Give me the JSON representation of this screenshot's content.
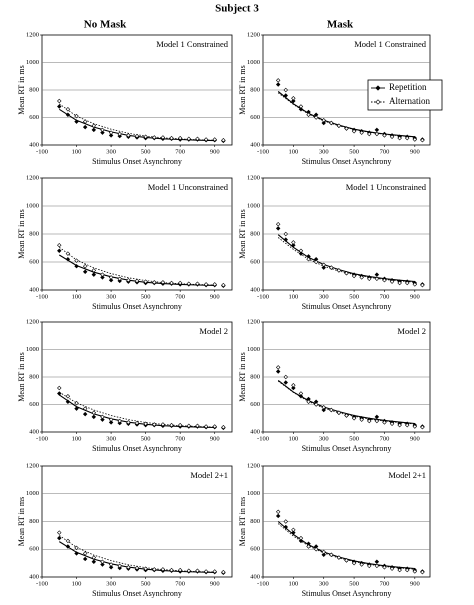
{
  "title": "Subject 3",
  "columns": [
    "No Mask",
    "Mask"
  ],
  "chart_data": [
    {
      "type": "scatter",
      "title": "Model 1 Constrained",
      "xlabel": "Stimulus Onset Asynchrony",
      "ylabel": "Mean RT in ms",
      "xlim": [
        -100,
        1000
      ],
      "ylim": [
        400,
        1200
      ],
      "xticks": [
        -100,
        100,
        300,
        500,
        700,
        900
      ],
      "yticks": [
        400,
        600,
        800,
        1000,
        1200
      ],
      "grid": true,
      "legend": false,
      "x": [
        0,
        50,
        100,
        150,
        200,
        250,
        300,
        350,
        400,
        450,
        500,
        550,
        600,
        650,
        700,
        750,
        800,
        850,
        900,
        950
      ],
      "fit_x": [
        0,
        100,
        200,
        300,
        400,
        500,
        600,
        700,
        800,
        900
      ],
      "series": [
        {
          "name": "Repetition",
          "color": "#000",
          "values": [
            680,
            620,
            570,
            530,
            510,
            490,
            470,
            465,
            460,
            455,
            450,
            450,
            445,
            445,
            440,
            440,
            440,
            435,
            435,
            430
          ],
          "fit": [
            660,
            580,
            530,
            495,
            470,
            455,
            445,
            440,
            435,
            432
          ]
        },
        {
          "name": "Alternation",
          "color": "#000",
          "values": [
            720,
            660,
            610,
            570,
            540,
            510,
            490,
            480,
            470,
            465,
            460,
            455,
            455,
            450,
            450,
            445,
            445,
            440,
            440,
            435
          ],
          "fit": [
            700,
            610,
            555,
            515,
            485,
            465,
            452,
            444,
            438,
            434
          ]
        }
      ]
    },
    {
      "type": "scatter",
      "title": "Model 1 Constrained",
      "xlabel": "Stimulus Onset Asynchrony",
      "ylabel": "Mean RT in ms",
      "xlim": [
        -100,
        1000
      ],
      "ylim": [
        400,
        1200
      ],
      "xticks": [
        -100,
        100,
        300,
        500,
        700,
        900
      ],
      "yticks": [
        400,
        600,
        800,
        1000,
        1200
      ],
      "grid": true,
      "legend": true,
      "x": [
        0,
        50,
        100,
        150,
        200,
        250,
        300,
        350,
        400,
        450,
        500,
        550,
        600,
        650,
        700,
        750,
        800,
        850,
        900,
        950
      ],
      "fit_x": [
        0,
        100,
        200,
        300,
        400,
        500,
        600,
        700,
        800,
        900
      ],
      "series": [
        {
          "name": "Repetition",
          "color": "#000",
          "values": [
            840,
            760,
            720,
            660,
            640,
            620,
            560,
            560,
            540,
            520,
            510,
            500,
            490,
            510,
            480,
            470,
            460,
            460,
            450,
            440
          ],
          "fit": [
            790,
            700,
            630,
            580,
            545,
            515,
            495,
            480,
            470,
            460
          ]
        },
        {
          "name": "Alternation",
          "color": "#000",
          "values": [
            870,
            800,
            740,
            680,
            620,
            600,
            580,
            560,
            540,
            520,
            500,
            490,
            480,
            480,
            470,
            460,
            450,
            450,
            440,
            435
          ],
          "fit": [
            780,
            695,
            625,
            575,
            540,
            512,
            492,
            478,
            467,
            458
          ]
        }
      ]
    },
    {
      "type": "scatter",
      "title": "Model 1 Unconstrained",
      "xlabel": "Stimulus Onset Asynchrony",
      "ylabel": "Mean RT in ms",
      "xlim": [
        -100,
        1000
      ],
      "ylim": [
        400,
        1200
      ],
      "xticks": [
        -100,
        100,
        300,
        500,
        700,
        900
      ],
      "yticks": [
        400,
        600,
        800,
        1000,
        1200
      ],
      "grid": true,
      "legend": false,
      "x": [
        0,
        50,
        100,
        150,
        200,
        250,
        300,
        350,
        400,
        450,
        500,
        550,
        600,
        650,
        700,
        750,
        800,
        850,
        900,
        950
      ],
      "fit_x": [
        0,
        100,
        200,
        300,
        400,
        500,
        600,
        700,
        800,
        900
      ],
      "series": [
        {
          "name": "Repetition",
          "color": "#000",
          "values": [
            680,
            620,
            570,
            530,
            510,
            490,
            470,
            465,
            460,
            455,
            450,
            450,
            445,
            445,
            440,
            440,
            440,
            435,
            435,
            430
          ],
          "fit": [
            650,
            575,
            527,
            494,
            470,
            455,
            446,
            440,
            436,
            433
          ]
        },
        {
          "name": "Alternation",
          "color": "#000",
          "values": [
            720,
            660,
            610,
            570,
            540,
            510,
            490,
            480,
            470,
            465,
            460,
            455,
            455,
            450,
            450,
            445,
            445,
            440,
            440,
            435
          ],
          "fit": [
            705,
            615,
            558,
            517,
            487,
            467,
            453,
            445,
            439,
            435
          ]
        }
      ]
    },
    {
      "type": "scatter",
      "title": "Model 1 Unconstrained",
      "xlabel": "Stimulus Onset Asynchrony",
      "ylabel": "Mean RT in ms",
      "xlim": [
        -100,
        1000
      ],
      "ylim": [
        400,
        1200
      ],
      "xticks": [
        -100,
        100,
        300,
        500,
        700,
        900
      ],
      "yticks": [
        400,
        600,
        800,
        1000,
        1200
      ],
      "grid": true,
      "legend": false,
      "x": [
        0,
        50,
        100,
        150,
        200,
        250,
        300,
        350,
        400,
        450,
        500,
        550,
        600,
        650,
        700,
        750,
        800,
        850,
        900,
        950
      ],
      "fit_x": [
        0,
        100,
        200,
        300,
        400,
        500,
        600,
        700,
        800,
        900
      ],
      "series": [
        {
          "name": "Repetition",
          "color": "#000",
          "values": [
            840,
            760,
            720,
            660,
            640,
            620,
            560,
            560,
            540,
            520,
            510,
            500,
            490,
            510,
            480,
            470,
            460,
            460,
            450,
            440
          ],
          "fit": [
            795,
            705,
            633,
            582,
            546,
            516,
            496,
            481,
            470,
            461
          ]
        },
        {
          "name": "Alternation",
          "color": "#000",
          "values": [
            870,
            800,
            740,
            680,
            620,
            600,
            580,
            560,
            540,
            520,
            500,
            490,
            480,
            480,
            470,
            460,
            450,
            450,
            440,
            435
          ],
          "fit": [
            775,
            690,
            620,
            570,
            535,
            510,
            490,
            475,
            465,
            455
          ]
        }
      ]
    },
    {
      "type": "scatter",
      "title": "Model 2",
      "xlabel": "Stimulus Onset Asynchrony",
      "ylabel": "Mean RT in ms",
      "xlim": [
        -100,
        1000
      ],
      "ylim": [
        400,
        1200
      ],
      "xticks": [
        -100,
        100,
        300,
        500,
        700,
        900
      ],
      "yticks": [
        400,
        600,
        800,
        1000,
        1200
      ],
      "grid": true,
      "legend": false,
      "x": [
        0,
        50,
        100,
        150,
        200,
        250,
        300,
        350,
        400,
        450,
        500,
        550,
        600,
        650,
        700,
        750,
        800,
        850,
        900,
        950
      ],
      "fit_x": [
        0,
        100,
        200,
        300,
        400,
        500,
        600,
        700,
        800,
        900
      ],
      "series": [
        {
          "name": "Repetition",
          "color": "#000",
          "values": [
            680,
            620,
            570,
            530,
            510,
            490,
            470,
            465,
            460,
            455,
            450,
            450,
            445,
            445,
            440,
            440,
            440,
            435,
            435,
            430
          ],
          "fit": [
            670,
            585,
            532,
            496,
            471,
            456,
            446,
            440,
            436,
            433
          ]
        },
        {
          "name": "Alternation",
          "color": "#000",
          "values": [
            720,
            660,
            610,
            570,
            540,
            510,
            490,
            480,
            470,
            465,
            460,
            455,
            455,
            450,
            450,
            445,
            445,
            440,
            440,
            435
          ],
          "fit": [
            690,
            612,
            560,
            520,
            490,
            469,
            455,
            446,
            440,
            436
          ]
        }
      ]
    },
    {
      "type": "scatter",
      "title": "Model 2",
      "xlabel": "Stimulus Onset Asynchrony",
      "ylabel": "Mean RT in ms",
      "xlim": [
        -100,
        1000
      ],
      "ylim": [
        400,
        1200
      ],
      "xticks": [
        -100,
        100,
        300,
        500,
        700,
        900
      ],
      "yticks": [
        400,
        600,
        800,
        1000,
        1200
      ],
      "grid": true,
      "legend": false,
      "x": [
        0,
        50,
        100,
        150,
        200,
        250,
        300,
        350,
        400,
        450,
        500,
        550,
        600,
        650,
        700,
        750,
        800,
        850,
        900,
        950
      ],
      "fit_x": [
        0,
        100,
        200,
        300,
        400,
        500,
        600,
        700,
        800,
        900
      ],
      "series": [
        {
          "name": "Repetition",
          "color": "#000",
          "values": [
            840,
            760,
            720,
            660,
            640,
            620,
            560,
            560,
            540,
            520,
            510,
            500,
            490,
            510,
            480,
            470,
            460,
            460,
            450,
            440
          ],
          "fit": [
            775,
            690,
            628,
            582,
            548,
            520,
            500,
            484,
            472,
            462
          ]
        },
        {
          "name": "Alternation",
          "color": "#000",
          "values": [
            870,
            800,
            740,
            680,
            620,
            600,
            580,
            560,
            540,
            520,
            500,
            490,
            480,
            480,
            470,
            460,
            450,
            450,
            440,
            435
          ],
          "fit": [
            770,
            688,
            622,
            574,
            540,
            514,
            494,
            479,
            468,
            458
          ]
        }
      ]
    },
    {
      "type": "scatter",
      "title": "Model 2+1",
      "xlabel": "Stimulus Onset Asynchrony",
      "ylabel": "Mean RT in ms",
      "xlim": [
        -100,
        1000
      ],
      "ylim": [
        400,
        1200
      ],
      "xticks": [
        -100,
        100,
        300,
        500,
        700,
        900
      ],
      "yticks": [
        400,
        600,
        800,
        1000,
        1200
      ],
      "grid": true,
      "legend": false,
      "x": [
        0,
        50,
        100,
        150,
        200,
        250,
        300,
        350,
        400,
        450,
        500,
        550,
        600,
        650,
        700,
        750,
        800,
        850,
        900,
        950
      ],
      "fit_x": [
        0,
        100,
        200,
        300,
        400,
        500,
        600,
        700,
        800,
        900
      ],
      "series": [
        {
          "name": "Repetition",
          "color": "#000",
          "values": [
            680,
            620,
            570,
            530,
            510,
            490,
            470,
            465,
            460,
            455,
            450,
            450,
            445,
            445,
            440,
            440,
            440,
            435,
            435,
            430
          ],
          "fit": [
            655,
            578,
            529,
            495,
            471,
            456,
            446,
            440,
            436,
            433
          ]
        },
        {
          "name": "Alternation",
          "color": "#000",
          "values": [
            720,
            660,
            610,
            570,
            540,
            510,
            490,
            480,
            470,
            465,
            460,
            455,
            455,
            450,
            450,
            445,
            445,
            440,
            440,
            435
          ],
          "fit": [
            700,
            614,
            558,
            518,
            488,
            467,
            453,
            445,
            439,
            435
          ]
        }
      ]
    },
    {
      "type": "scatter",
      "title": "Model 2+1",
      "xlabel": "Stimulus Onset Asynchrony",
      "ylabel": "Mean RT in ms",
      "xlim": [
        -100,
        1000
      ],
      "ylim": [
        400,
        1200
      ],
      "xticks": [
        -100,
        100,
        300,
        500,
        700,
        900
      ],
      "yticks": [
        400,
        600,
        800,
        1000,
        1200
      ],
      "grid": true,
      "legend": false,
      "x": [
        0,
        50,
        100,
        150,
        200,
        250,
        300,
        350,
        400,
        450,
        500,
        550,
        600,
        650,
        700,
        750,
        800,
        850,
        900,
        950
      ],
      "fit_x": [
        0,
        100,
        200,
        300,
        400,
        500,
        600,
        700,
        800,
        900
      ],
      "series": [
        {
          "name": "Repetition",
          "color": "#000",
          "values": [
            840,
            760,
            720,
            660,
            640,
            620,
            560,
            560,
            540,
            520,
            510,
            500,
            490,
            510,
            480,
            470,
            460,
            460,
            450,
            440
          ],
          "fit": [
            800,
            706,
            632,
            580,
            544,
            516,
            496,
            481,
            470,
            461
          ]
        },
        {
          "name": "Alternation",
          "color": "#000",
          "values": [
            870,
            800,
            740,
            680,
            620,
            600,
            580,
            560,
            540,
            520,
            500,
            490,
            480,
            480,
            470,
            460,
            450,
            450,
            440,
            435
          ],
          "fit": [
            785,
            695,
            624,
            573,
            537,
            511,
            491,
            476,
            465,
            456
          ]
        }
      ]
    }
  ]
}
